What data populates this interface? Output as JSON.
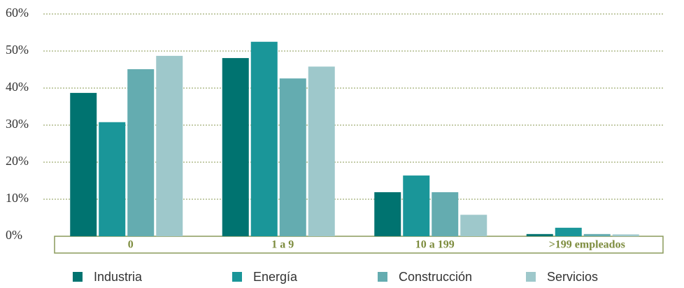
{
  "chart_data": {
    "type": "bar",
    "categories": [
      "0",
      "1 a 9",
      "10 a 199",
      ">199 empleados"
    ],
    "series": [
      {
        "name": "Industria",
        "color": "#007370",
        "values": [
          38.7,
          48.1,
          11.9,
          0.6
        ]
      },
      {
        "name": "Energía",
        "color": "#1a9699",
        "values": [
          30.8,
          52.5,
          16.4,
          2.3
        ]
      },
      {
        "name": "Construcción",
        "color": "#64acb0",
        "values": [
          45.1,
          42.6,
          11.9,
          0.6
        ]
      },
      {
        "name": "Servicios",
        "color": "#9ec8cb",
        "values": [
          48.7,
          45.8,
          5.8,
          0.5
        ]
      }
    ],
    "ylim": [
      0,
      60
    ],
    "yticks": [
      {
        "value": 0,
        "label": "0%"
      },
      {
        "value": 10,
        "label": "10%"
      },
      {
        "value": 20,
        "label": "20%"
      },
      {
        "value": 30,
        "label": "30%"
      },
      {
        "value": 40,
        "label": "40%"
      },
      {
        "value": 50,
        "label": "50%"
      },
      {
        "value": 60,
        "label": "60%"
      }
    ],
    "grid": true
  }
}
